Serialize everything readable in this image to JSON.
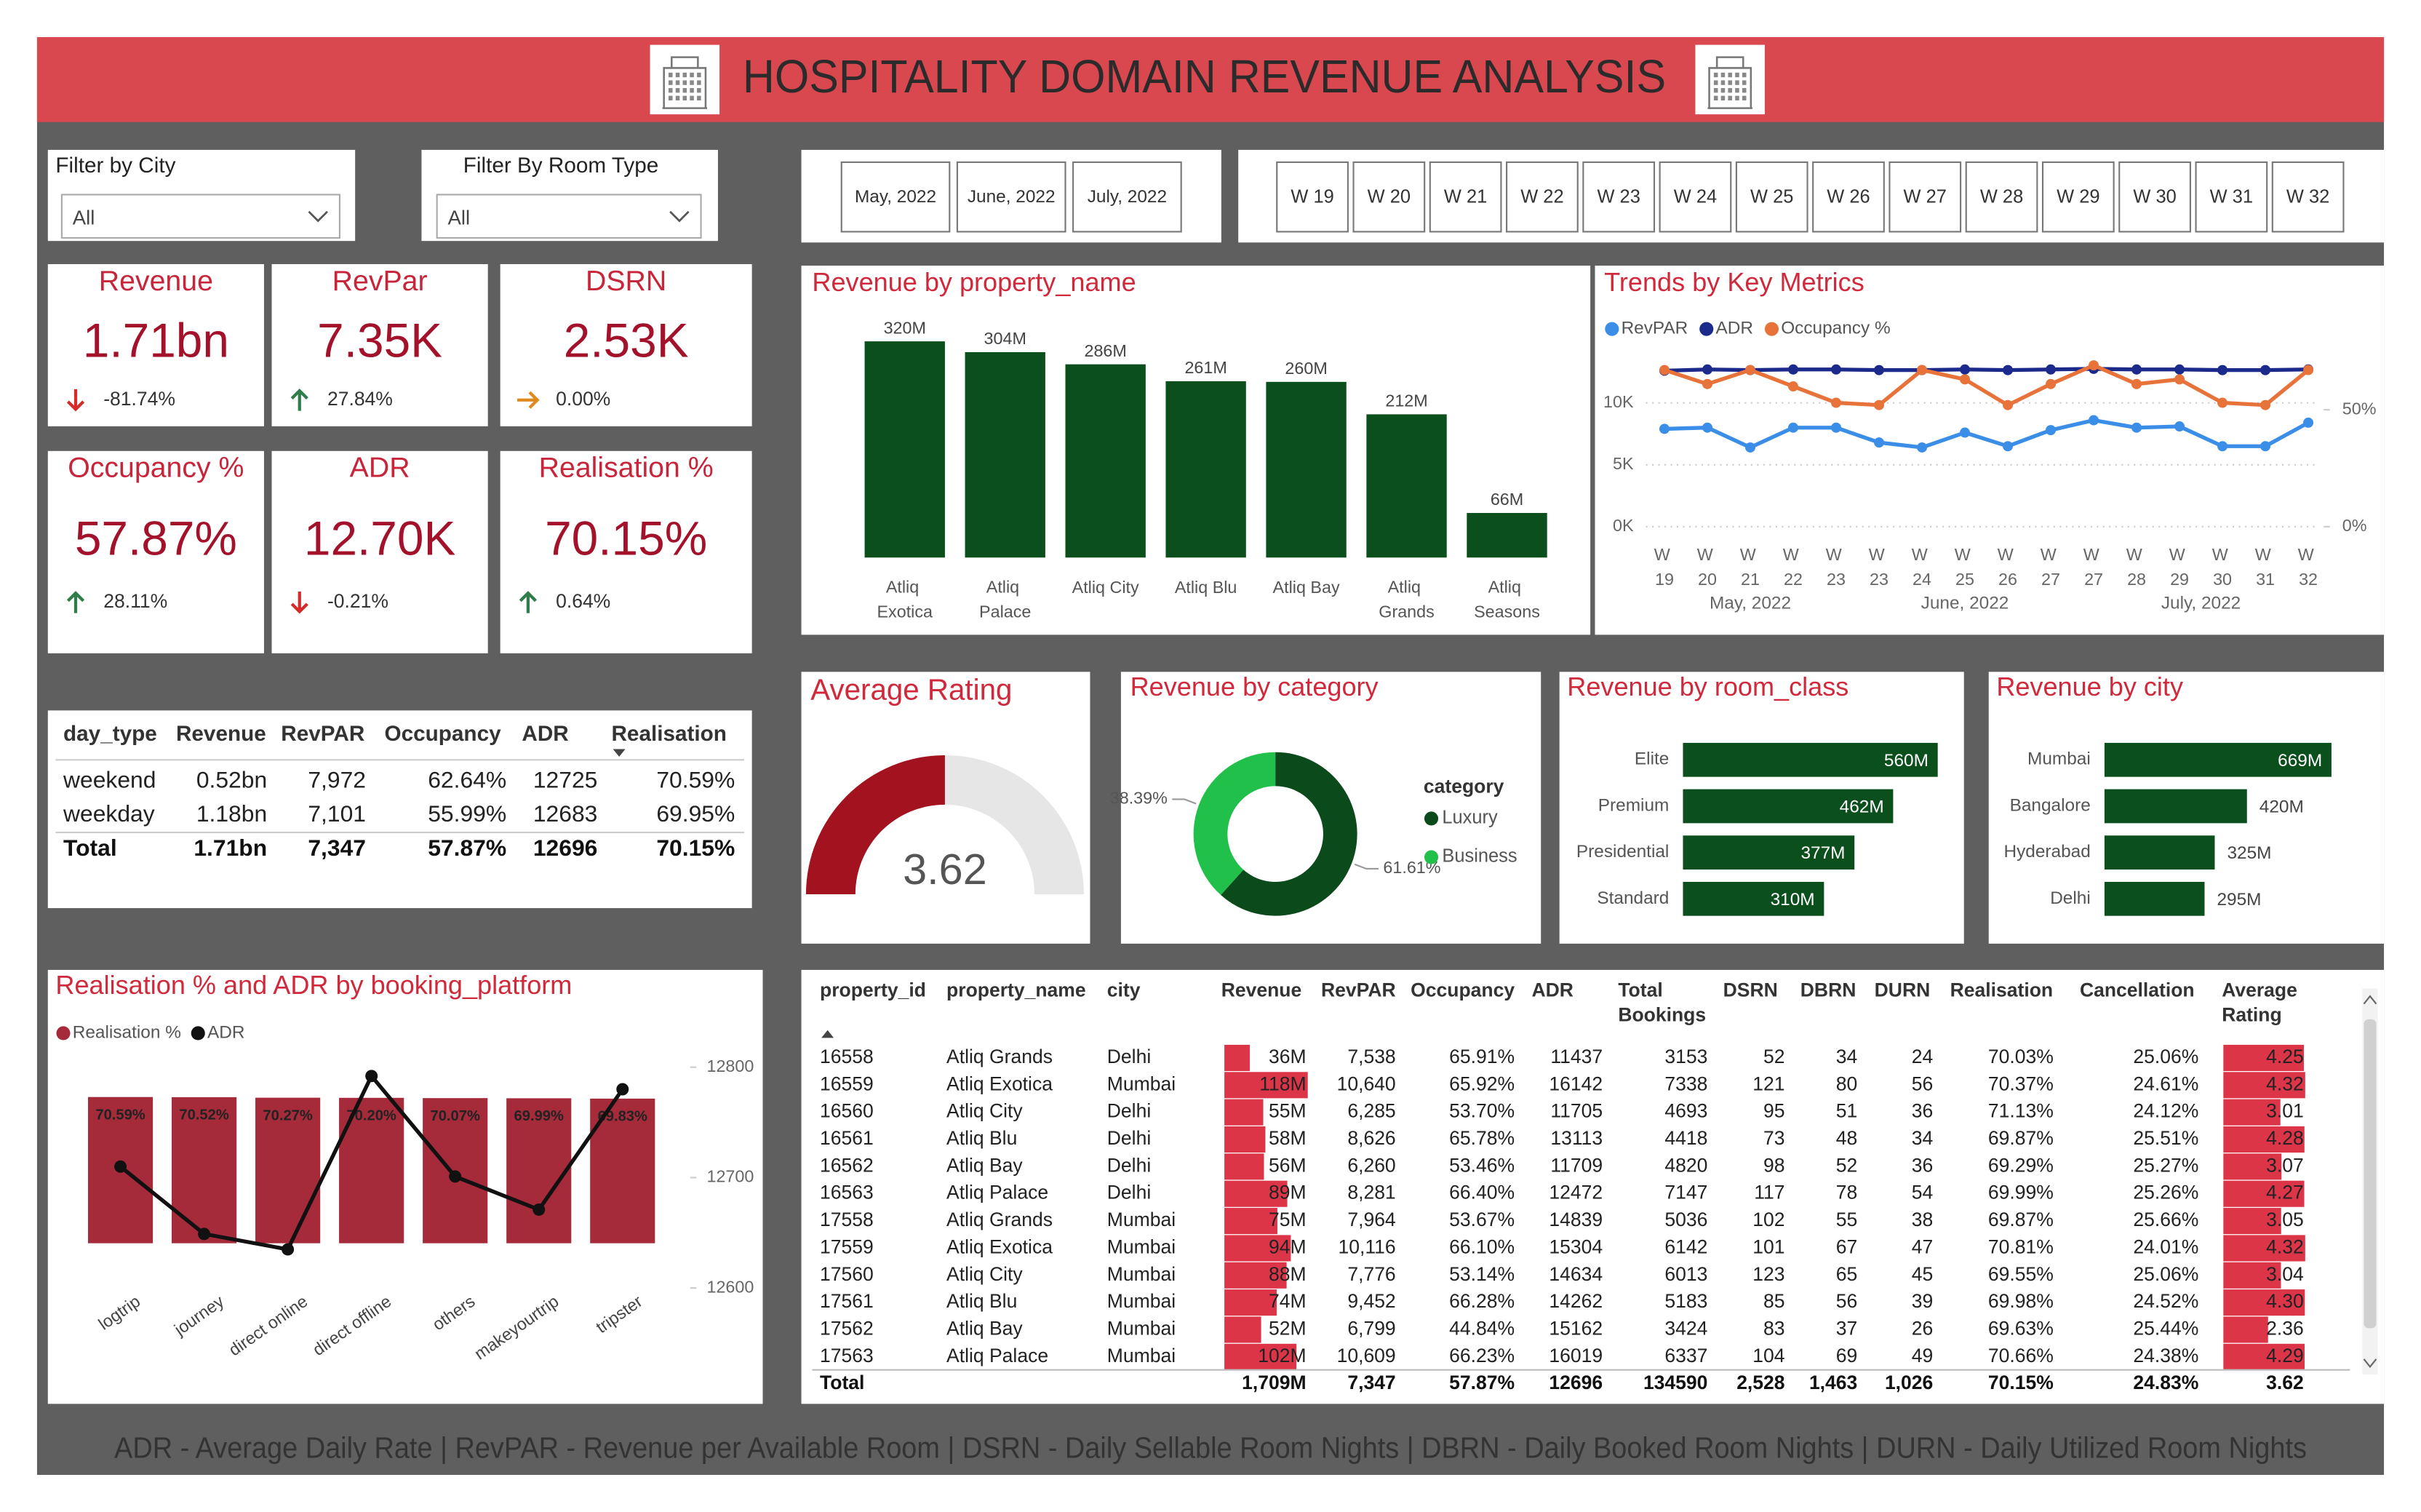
{
  "header": {
    "title": "HOSPITALITY DOMAIN REVENUE ANALYSIS"
  },
  "filters": [
    {
      "label": "Filter by City",
      "value": "All"
    },
    {
      "label": "Filter By Room Type",
      "value": "All"
    }
  ],
  "months": [
    "May, 2022",
    "June, 2022",
    "July, 2022"
  ],
  "weeks": [
    "W 19",
    "W 20",
    "W 21",
    "W 22",
    "W 23",
    "W 24",
    "W 25",
    "W 26",
    "W 27",
    "W 28",
    "W 29",
    "W 30",
    "W 31",
    "W 32"
  ],
  "kpis": [
    {
      "title": "Revenue",
      "value": "1.71bn",
      "change": "-81.74%",
      "trend": "down"
    },
    {
      "title": "RevPar",
      "value": "7.35K",
      "change": "27.84%",
      "trend": "up"
    },
    {
      "title": "DSRN",
      "value": "2.53K",
      "change": "0.00%",
      "trend": "flat"
    },
    {
      "title": "Occupancy %",
      "value": "57.87%",
      "change": "28.11%",
      "trend": "up"
    },
    {
      "title": "ADR",
      "value": "12.70K",
      "change": "-0.21%",
      "trend": "down"
    },
    {
      "title": "Realisation %",
      "value": "70.15%",
      "change": "0.64%",
      "trend": "up"
    }
  ],
  "day_type_table": {
    "columns": [
      "day_type",
      "Revenue",
      "RevPAR",
      "Occupancy",
      "ADR",
      "Realisation"
    ],
    "rows": [
      [
        "weekend",
        "0.52bn",
        "7,972",
        "62.64%",
        "12725",
        "70.59%"
      ],
      [
        "weekday",
        "1.18bn",
        "7,101",
        "55.99%",
        "12683",
        "69.95%"
      ]
    ],
    "total": {
      "label": "Total",
      "cells": [
        "1.71bn",
        "7,347",
        "57.87%",
        "12696",
        "70.15%"
      ]
    }
  },
  "chart_data": [
    {
      "type": "bar",
      "title": "Revenue by property_name",
      "categories": [
        "Atliq Exotica",
        "Atliq Palace",
        "Atliq City",
        "Atliq Blu",
        "Atliq Bay",
        "Atliq Grands",
        "Atliq Seasons"
      ],
      "values": [
        320,
        304,
        286,
        261,
        260,
        212,
        66
      ],
      "value_labels": [
        "320M",
        "304M",
        "286M",
        "261M",
        "260M",
        "212M",
        "66M"
      ],
      "color": "#0b4f1c"
    },
    {
      "type": "line",
      "title": "Trends by Key Metrics",
      "x": [
        {
          "week": "W 19",
          "month": "May, 2022"
        },
        {
          "week": "W 20",
          "month": "May, 2022"
        },
        {
          "week": "W 21",
          "month": "May, 2022"
        },
        {
          "week": "W 22",
          "month": "May, 2022"
        },
        {
          "week": "W 23",
          "month": "May, 2022"
        },
        {
          "week": "W 23",
          "month": "June, 2022"
        },
        {
          "week": "W 24",
          "month": "June, 2022"
        },
        {
          "week": "W 25",
          "month": "June, 2022"
        },
        {
          "week": "W 26",
          "month": "June, 2022"
        },
        {
          "week": "W 27",
          "month": "June, 2022"
        },
        {
          "week": "W 27",
          "month": "July, 2022"
        },
        {
          "week": "W 28",
          "month": "July, 2022"
        },
        {
          "week": "W 29",
          "month": "July, 2022"
        },
        {
          "week": "W 30",
          "month": "July, 2022"
        },
        {
          "week": "W 31",
          "month": "July, 2022"
        },
        {
          "week": "W 32",
          "month": "July, 2022"
        }
      ],
      "series": [
        {
          "name": "RevPAR",
          "color": "#3a8ee8",
          "values": [
            7900,
            8000,
            6400,
            8000,
            8000,
            6800,
            6400,
            7600,
            6500,
            7800,
            8600,
            8000,
            8100,
            6500,
            6500,
            8400
          ]
        },
        {
          "name": "ADR",
          "color": "#1c2a8c",
          "values": [
            12600,
            12700,
            12650,
            12700,
            12700,
            12650,
            12650,
            12700,
            12650,
            12700,
            12750,
            12700,
            12700,
            12650,
            12650,
            12700
          ]
        },
        {
          "name": "Occupancy %",
          "color": "#e8733a",
          "axis": "y2",
          "values": [
            67,
            61,
            67,
            60,
            53,
            52,
            67,
            63,
            52,
            61,
            69,
            61,
            63,
            53,
            52,
            67
          ]
        }
      ],
      "ylim": [
        0,
        13600
      ],
      "yticks": [
        {
          "value": 0,
          "label": "0K"
        },
        {
          "value": 5000,
          "label": "5K"
        },
        {
          "value": 10000,
          "label": "10K"
        }
      ],
      "y2lim": [
        0,
        72
      ],
      "y2ticks": [
        {
          "value": 0,
          "label": "0%"
        },
        {
          "value": 50,
          "label": "50%"
        }
      ],
      "grid": true,
      "legend": "top-left"
    },
    {
      "type": "gauge",
      "title": "Average Rating",
      "value": 3.62,
      "ylim": [
        0,
        7.24
      ],
      "color": "#a3121f"
    },
    {
      "type": "donut",
      "title": "Revenue by category",
      "legend_title": "category",
      "categories": [
        "Luxury",
        "Business"
      ],
      "values": [
        61.61,
        38.39
      ],
      "value_labels": [
        "61.61%",
        "38.39%"
      ],
      "colors": [
        "#0b4a1b",
        "#21c04b"
      ]
    },
    {
      "type": "hbar",
      "title": "Revenue by room_class",
      "categories": [
        "Elite",
        "Premium",
        "Presidential",
        "Standard"
      ],
      "values": [
        560,
        462,
        377,
        310
      ],
      "value_labels": [
        "560M",
        "462M",
        "377M",
        "310M"
      ],
      "color": "#0b4f1c"
    },
    {
      "type": "hbar",
      "title": "Revenue by city",
      "categories": [
        "Mumbai",
        "Bangalore",
        "Hyderabad",
        "Delhi"
      ],
      "values": [
        669,
        420,
        325,
        295
      ],
      "value_labels": [
        "669M",
        "420M",
        "325M",
        "295M"
      ],
      "color": "#0b4f1c"
    },
    {
      "type": "combo",
      "title": "Realisation % and ADR by booking_platform",
      "categories": [
        "logtrip",
        "journey",
        "direct online",
        "direct offline",
        "others",
        "makeyourtrip",
        "tripster"
      ],
      "series": [
        {
          "name": "Realisation %",
          "type": "bar",
          "color": "#a52a3a",
          "values": [
            70.59,
            70.52,
            70.27,
            70.2,
            70.07,
            69.99,
            69.83
          ],
          "value_labels": [
            "70.59%",
            "70.52%",
            "70.27%",
            "70.20%",
            "70.07%",
            "69.99%",
            "69.83%"
          ]
        },
        {
          "name": "ADR",
          "type": "line",
          "axis": "y2",
          "color": "#111111",
          "values": [
            12710,
            12649,
            12635,
            12792,
            12701,
            12671,
            12780
          ]
        }
      ],
      "ylim": [
        0,
        85
      ],
      "y2lim": [
        12600,
        12800
      ],
      "y2ticks": [
        12600,
        12700,
        12800
      ]
    }
  ],
  "property_table": {
    "columns": [
      "property_id",
      "property_name",
      "city",
      "Revenue",
      "RevPAR",
      "Occupancy",
      "ADR",
      "Total Bookings",
      "DSRN",
      "DBRN",
      "DURN",
      "Realisation",
      "Cancellation",
      "Average Rating"
    ],
    "rows": [
      [
        "16558",
        "Atliq Grands",
        "Delhi",
        "36M",
        "7,538",
        "65.91%",
        "11437",
        "3153",
        "52",
        "34",
        "24",
        "70.03%",
        "25.06%",
        "4.25"
      ],
      [
        "16559",
        "Atliq Exotica",
        "Mumbai",
        "118M",
        "10,640",
        "65.92%",
        "16142",
        "7338",
        "121",
        "80",
        "56",
        "70.37%",
        "24.61%",
        "4.32"
      ],
      [
        "16560",
        "Atliq City",
        "Delhi",
        "55M",
        "6,285",
        "53.70%",
        "11705",
        "4693",
        "95",
        "51",
        "36",
        "71.13%",
        "24.12%",
        "3.01"
      ],
      [
        "16561",
        "Atliq Blu",
        "Delhi",
        "58M",
        "8,626",
        "65.78%",
        "13113",
        "4418",
        "73",
        "48",
        "34",
        "69.87%",
        "25.51%",
        "4.28"
      ],
      [
        "16562",
        "Atliq Bay",
        "Delhi",
        "56M",
        "6,260",
        "53.46%",
        "11709",
        "4820",
        "98",
        "52",
        "36",
        "69.29%",
        "25.27%",
        "3.07"
      ],
      [
        "16563",
        "Atliq Palace",
        "Delhi",
        "89M",
        "8,281",
        "66.40%",
        "12472",
        "7147",
        "117",
        "78",
        "54",
        "69.99%",
        "25.26%",
        "4.27"
      ],
      [
        "17558",
        "Atliq Grands",
        "Mumbai",
        "75M",
        "7,964",
        "53.67%",
        "14839",
        "5036",
        "102",
        "55",
        "38",
        "69.87%",
        "25.66%",
        "3.05"
      ],
      [
        "17559",
        "Atliq Exotica",
        "Mumbai",
        "94M",
        "10,116",
        "66.10%",
        "15304",
        "6142",
        "101",
        "67",
        "47",
        "70.81%",
        "24.01%",
        "4.32"
      ],
      [
        "17560",
        "Atliq City",
        "Mumbai",
        "88M",
        "7,776",
        "53.14%",
        "14634",
        "6013",
        "123",
        "65",
        "45",
        "69.55%",
        "25.06%",
        "3.04"
      ],
      [
        "17561",
        "Atliq Blu",
        "Mumbai",
        "74M",
        "9,452",
        "66.28%",
        "14262",
        "5183",
        "85",
        "56",
        "39",
        "69.98%",
        "24.52%",
        "4.30"
      ],
      [
        "17562",
        "Atliq Bay",
        "Mumbai",
        "52M",
        "6,799",
        "44.84%",
        "15162",
        "3424",
        "83",
        "37",
        "26",
        "69.63%",
        "25.44%",
        "2.36"
      ],
      [
        "17563",
        "Atliq Palace",
        "Mumbai",
        "102M",
        "10,609",
        "66.23%",
        "16019",
        "6337",
        "104",
        "69",
        "49",
        "70.66%",
        "24.38%",
        "4.29"
      ]
    ],
    "total": {
      "label": "Total",
      "cells": [
        "1,709M",
        "7,347",
        "57.87%",
        "12696",
        "134590",
        "2,528",
        "1,463",
        "1,026",
        "70.15%",
        "24.83%",
        "3.62"
      ]
    }
  },
  "footer": "ADR - Average Daily Rate | RevPAR - Revenue per Available Room | DSRN - Daily Sellable Room Nights | DBRN - Daily Booked Room Nights | DURN - Daily Utilized Room Nights"
}
